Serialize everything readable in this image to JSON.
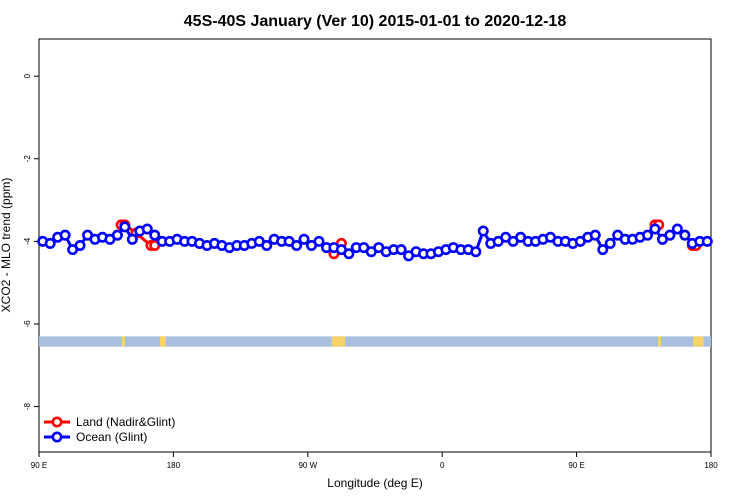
{
  "chart_data": {
    "type": "line",
    "title": "45S-40S January (Ver 10)   2015-01-01 to 2020-12-18",
    "xlabel": "Longitude (deg E)",
    "ylabel": "XCO2 - MLO trend (ppm)",
    "xlim": [
      90,
      540
    ],
    "ylim": [
      -9.1,
      0.9
    ],
    "x_ticks": [
      {
        "value": 90,
        "label": "90 E"
      },
      {
        "value": 180,
        "label": "180"
      },
      {
        "value": 270,
        "label": "90 W"
      },
      {
        "value": 360,
        "label": "0"
      },
      {
        "value": 450,
        "label": "90 E"
      },
      {
        "value": 540,
        "label": "180"
      }
    ],
    "y_ticks": [
      {
        "value": 0,
        "label": "0"
      },
      {
        "value": -2,
        "label": "-2"
      },
      {
        "value": -4,
        "label": "-4"
      },
      {
        "value": -6,
        "label": "-6"
      },
      {
        "value": -8,
        "label": "-8"
      }
    ],
    "land_mask_band": {
      "y_range": [
        -6.55,
        -6.3
      ],
      "ocean_color": "#a8bfdf",
      "land_color": "#f5d36a",
      "land_segments": [
        [
          145.5,
          147.5
        ],
        [
          171,
          175
        ],
        [
          286,
          295
        ],
        [
          504.5,
          506.5
        ],
        [
          528,
          535
        ]
      ]
    },
    "legend": {
      "position": "bottom-left",
      "entries": [
        {
          "label": "Land (Nadir&Glint)",
          "color": "#ff0000"
        },
        {
          "label": "Ocean (Glint)",
          "color": "#0000ff"
        }
      ]
    },
    "series": [
      {
        "name": "Land (Nadir&Glint)",
        "color": "#ff0000",
        "segments": [
          {
            "x": [
              145,
              147.5,
              155,
              165,
              167.5
            ],
            "y": [
              -3.6,
              -3.6,
              -3.8,
              -4.1,
              -4.1
            ]
          },
          {
            "x": [
              287.5,
              292.5
            ],
            "y": [
              -4.3,
              -4.05
            ]
          },
          {
            "x": [
              502.5,
              505
            ],
            "y": [
              -3.6,
              -3.6
            ]
          },
          {
            "x": [
              527.5,
              530
            ],
            "y": [
              -4.1,
              -4.1
            ]
          }
        ]
      },
      {
        "name": "Ocean (Glint)",
        "color": "#0000ff",
        "x": [
          92.5,
          97.5,
          102.5,
          107.5,
          112.5,
          117.5,
          122.5,
          127.5,
          132.5,
          137.5,
          142.5,
          147.5,
          152.5,
          157.5,
          162.5,
          167.5,
          172.5,
          177.5,
          182.5,
          187.5,
          192.5,
          197.5,
          202.5,
          207.5,
          212.5,
          217.5,
          222.5,
          227.5,
          232.5,
          237.5,
          242.5,
          247.5,
          252.5,
          257.5,
          262.5,
          267.5,
          272.5,
          277.5,
          282.5,
          287.5,
          292.5,
          297.5,
          302.5,
          307.5,
          312.5,
          317.5,
          322.5,
          327.5,
          332.5,
          337.5,
          342.5,
          347.5,
          352.5,
          357.5,
          362.5,
          367.5,
          372.5,
          377.5,
          382.5,
          387.5,
          392.5,
          397.5,
          402.5,
          407.5,
          412.5,
          417.5,
          422.5,
          427.5,
          432.5,
          437.5,
          442.5,
          447.5,
          452.5,
          457.5,
          462.5,
          467.5,
          472.5,
          477.5,
          482.5,
          487.5,
          492.5,
          497.5,
          502.5,
          507.5,
          512.5,
          517.5,
          522.5,
          527.5,
          532.5,
          537.5
        ],
        "y": [
          -4.0,
          -4.05,
          -3.9,
          -3.85,
          -4.2,
          -4.1,
          -3.85,
          -3.95,
          -3.9,
          -3.95,
          -3.85,
          -3.65,
          -3.95,
          -3.75,
          -3.7,
          -3.85,
          -4.0,
          -4.0,
          -3.95,
          -4.0,
          -4.0,
          -4.05,
          -4.1,
          -4.05,
          -4.1,
          -4.15,
          -4.1,
          -4.1,
          -4.05,
          -4.0,
          -4.1,
          -3.95,
          -4.0,
          -4.0,
          -4.1,
          -3.95,
          -4.1,
          -4.0,
          -4.15,
          -4.15,
          -4.2,
          -4.3,
          -4.15,
          -4.15,
          -4.25,
          -4.15,
          -4.25,
          -4.2,
          -4.2,
          -4.35,
          -4.25,
          -4.3,
          -4.3,
          -4.25,
          -4.2,
          -4.15,
          -4.2,
          -4.2,
          -4.25,
          -3.75,
          -4.05,
          -4.0,
          -3.9,
          -4.0,
          -3.9,
          -4.0,
          -4.0,
          -3.95,
          -3.9,
          -4.0,
          -4.0,
          -4.05,
          -4.0,
          -3.9,
          -3.85,
          -4.2,
          -4.05,
          -3.85,
          -3.95,
          -3.95,
          -3.9,
          -3.85,
          -3.7,
          -3.95,
          -3.85,
          -3.7,
          -3.85,
          -4.05,
          -4.0,
          -4.0
        ]
      }
    ]
  }
}
